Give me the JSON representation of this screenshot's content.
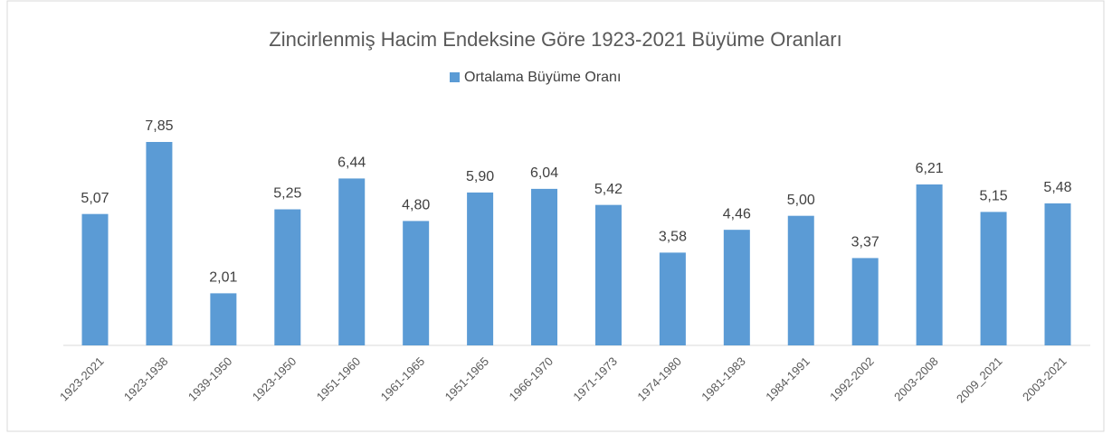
{
  "chart_data": {
    "type": "bar",
    "title": "Zincirlenmiş Hacim Endeksine Göre 1923-2021 Büyüme Oranları",
    "categories": [
      "1923-2021",
      "1923-1938",
      "1939-1950",
      "1923-1950",
      "1951-1960",
      "1961-1965",
      "1951-1965",
      "1966-1970",
      "1971-1973",
      "1974-1980",
      "1981-1983",
      "1984-1991",
      "1992-2002",
      "2003-2008",
      "2009_2021",
      "2003-2021"
    ],
    "series": [
      {
        "name": "Ortalama Büyüme Oranı",
        "color": "#5b9bd5",
        "values": [
          5.07,
          7.85,
          2.01,
          5.25,
          6.44,
          4.8,
          5.9,
          6.04,
          5.42,
          3.58,
          4.46,
          5.0,
          3.37,
          6.21,
          5.15,
          5.48
        ],
        "value_labels": [
          "5,07",
          "7,85",
          "2,01",
          "5,25",
          "6,44",
          "4,80",
          "5,90",
          "6,04",
          "5,42",
          "3,58",
          "4,46",
          "5,00",
          "3,37",
          "6,21",
          "5,15",
          "5,48"
        ]
      }
    ],
    "legend": "top"
  }
}
